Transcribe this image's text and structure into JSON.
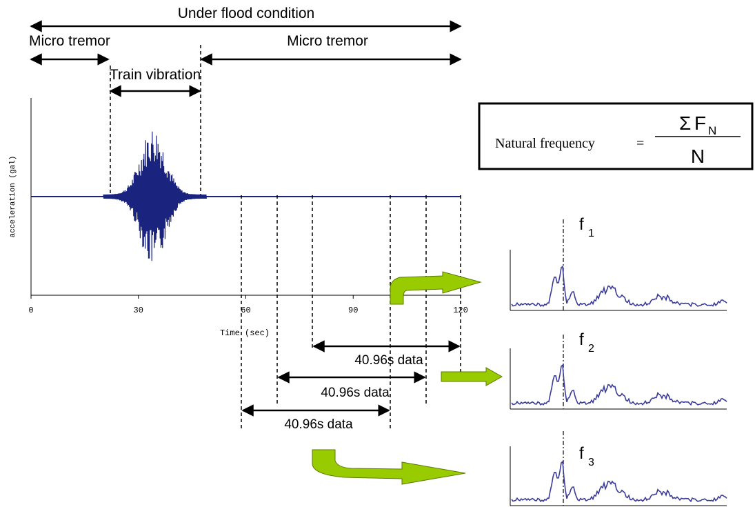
{
  "annotations": {
    "under_flood": "Under flood condition",
    "micro_tremor_left": "Micro tremor",
    "micro_tremor_right": "Micro tremor",
    "train_vibration": "Train vibration",
    "window_label_1": "40.96s data",
    "window_label_2": "40.96s data",
    "window_label_3": "40.96s data"
  },
  "formula": {
    "lhs": "Natural frequency",
    "equals": "=",
    "numerator_sigma": "Σ",
    "numerator_f": "F",
    "numerator_sub": "N",
    "denominator": "N"
  },
  "spectra": [
    {
      "label": "f",
      "sub": "1"
    },
    {
      "label": "f",
      "sub": "2"
    },
    {
      "label": "f",
      "sub": "3"
    }
  ],
  "chart_data": {
    "type": "line",
    "xlabel": "Time (sec)",
    "ylabel": "acceleration (gal)",
    "xlim": [
      0,
      120
    ],
    "xticks": [
      "0",
      "30",
      "60",
      "90",
      "120"
    ],
    "tick_values": [
      0,
      30,
      60,
      90,
      120
    ],
    "trace_color": "#1a237e"
  },
  "colors": {
    "arrow_green": "#99cc00",
    "spectrum_line": "#3a3a9a"
  }
}
